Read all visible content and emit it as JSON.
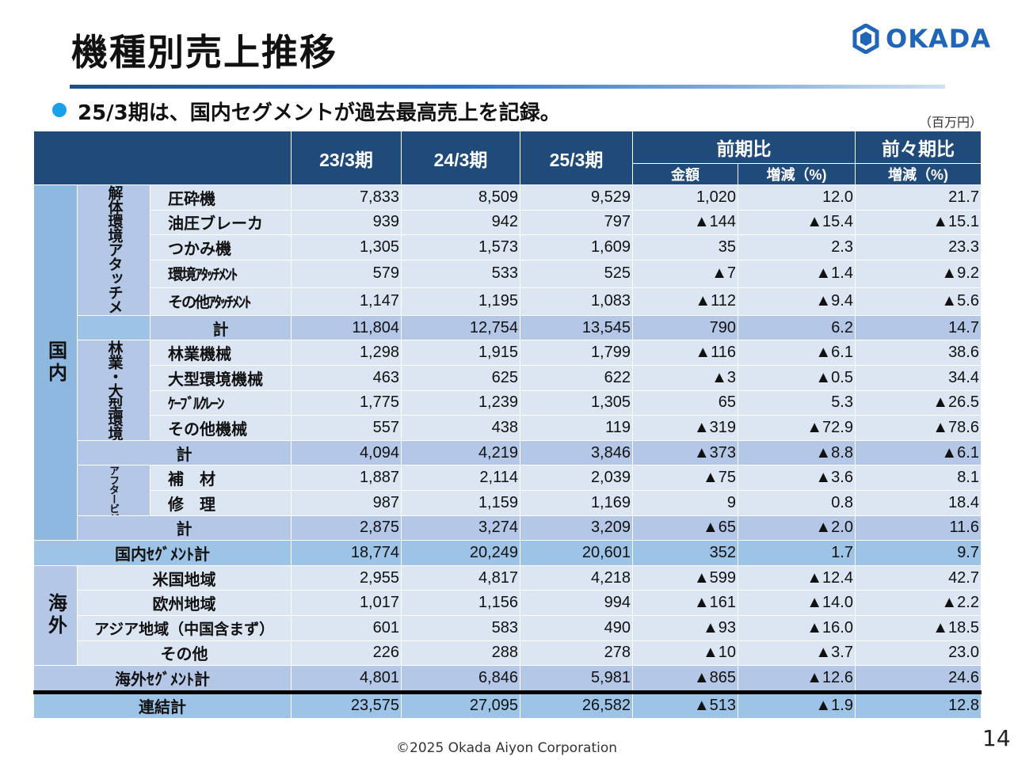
{
  "title": "機種別売上推移",
  "logo_text": "OKADA",
  "headline": "25/3期は、国内セグメントが過去最高売上を記録。",
  "unit": "（百万円）",
  "page_number": "14",
  "copyright": "©2025 Okada Aiyon Corporation",
  "colors": {
    "header": "#1f4a7a",
    "light": "#dce6f3",
    "subtotal": "#b4c7e7",
    "accent": "#1f66b8"
  },
  "headers": {
    "fy23": "23/3期",
    "fy24": "24/3期",
    "fy25": "25/3期",
    "yoy": "前期比",
    "yoy2": "前々期比",
    "amount": "金額",
    "change_pct": "増減（%)",
    "change_pct2": "増減（%)"
  },
  "segments": {
    "domestic": "国内",
    "overseas": "海外",
    "dismantling": "解体環境アタッチメント",
    "forestry": "林業・大型環境機械他",
    "aftermarket": "アフタービジネス"
  },
  "rows": {
    "crusher": {
      "label": "圧砕機",
      "v": [
        "7,833",
        "8,509",
        "9,529",
        "1,020",
        "12.0",
        "21.7"
      ]
    },
    "breaker": {
      "label": "油圧ブレーカ",
      "v": [
        "939",
        "942",
        "797",
        "▲144",
        "▲15.4",
        "▲15.1"
      ]
    },
    "grab": {
      "label": "つかみ機",
      "v": [
        "1,305",
        "1,573",
        "1,609",
        "35",
        "2.3",
        "23.3"
      ]
    },
    "env_attach": {
      "label": "環境ｱﾀｯﾁﾒﾝﾄ",
      "v": [
        "579",
        "533",
        "525",
        "▲7",
        "▲1.4",
        "▲9.2"
      ]
    },
    "other_attach": {
      "label": "その他ｱﾀｯﾁﾒﾝﾄ",
      "v": [
        "1,147",
        "1,195",
        "1,083",
        "▲112",
        "▲9.4",
        "▲5.6"
      ]
    },
    "sub1": {
      "label": "計",
      "v": [
        "11,804",
        "12,754",
        "13,545",
        "790",
        "6.2",
        "14.7"
      ]
    },
    "forest": {
      "label": "林業機械",
      "v": [
        "1,298",
        "1,915",
        "1,799",
        "▲116",
        "▲6.1",
        "38.6"
      ]
    },
    "large_env": {
      "label": "大型環境機械",
      "v": [
        "463",
        "625",
        "622",
        "▲3",
        "▲0.5",
        "34.4"
      ]
    },
    "cable": {
      "label": "ｹｰﾌﾞﾙｸﾚｰﾝ",
      "v": [
        "1,775",
        "1,239",
        "1,305",
        "65",
        "5.3",
        "▲26.5"
      ]
    },
    "other_mach": {
      "label": "その他機械",
      "v": [
        "557",
        "438",
        "119",
        "▲319",
        "▲72.9",
        "▲78.6"
      ]
    },
    "sub2": {
      "label": "計",
      "v": [
        "4,094",
        "4,219",
        "3,846",
        "▲373",
        "▲8.8",
        "▲6.1"
      ]
    },
    "parts": {
      "label": "補　材",
      "v": [
        "1,887",
        "2,114",
        "2,039",
        "▲75",
        "▲3.6",
        "8.1"
      ]
    },
    "repair": {
      "label": "修　理",
      "v": [
        "987",
        "1,159",
        "1,169",
        "9",
        "0.8",
        "18.4"
      ]
    },
    "sub3": {
      "label": "計",
      "v": [
        "2,875",
        "3,274",
        "3,209",
        "▲65",
        "▲2.0",
        "11.6"
      ]
    },
    "dom_total": {
      "label": "国内ｾｸﾞﾒﾝﾄ計",
      "v": [
        "18,774",
        "20,249",
        "20,601",
        "352",
        "1.7",
        "9.7"
      ]
    },
    "us": {
      "label": "米国地域",
      "v": [
        "2,955",
        "4,817",
        "4,218",
        "▲599",
        "▲12.4",
        "42.7"
      ]
    },
    "eu": {
      "label": "欧州地域",
      "v": [
        "1,017",
        "1,156",
        "994",
        "▲161",
        "▲14.0",
        "▲2.2"
      ]
    },
    "asia": {
      "label": "アジア地域（中国含まず）",
      "v": [
        "601",
        "583",
        "490",
        "▲93",
        "▲16.0",
        "▲18.5"
      ]
    },
    "other_reg": {
      "label": "その他",
      "v": [
        "226",
        "288",
        "278",
        "▲10",
        "▲3.7",
        "23.0"
      ]
    },
    "ovs_total": {
      "label": "海外ｾｸﾞﾒﾝﾄ計",
      "v": [
        "4,801",
        "6,846",
        "5,981",
        "▲865",
        "▲12.6",
        "24.6"
      ]
    },
    "consol": {
      "label": "連結計",
      "v": [
        "23,575",
        "27,095",
        "26,582",
        "▲513",
        "▲1.9",
        "12.8"
      ]
    }
  }
}
